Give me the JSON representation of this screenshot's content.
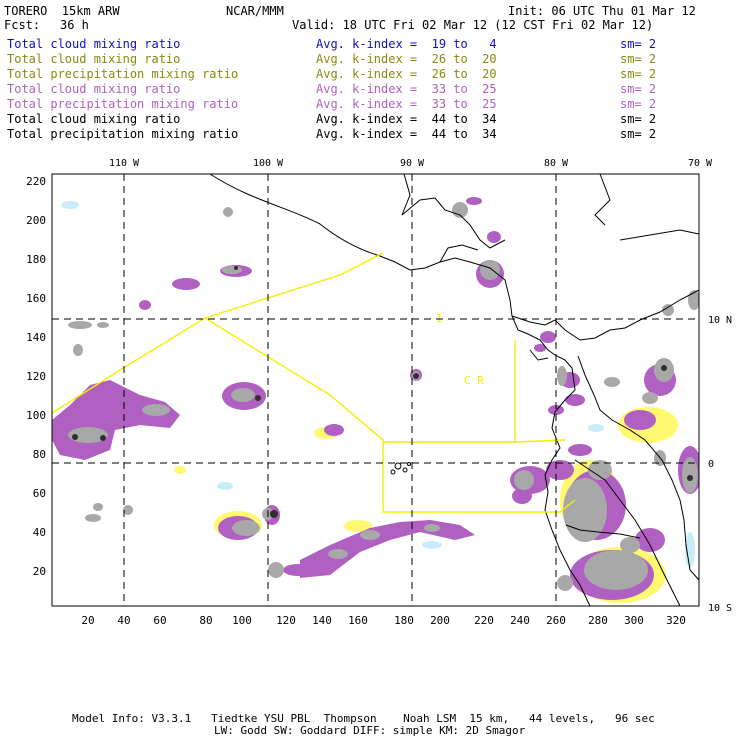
{
  "header": {
    "model": "TORERO  15km ARW",
    "center": "NCAR/MMM",
    "init": "Init: 06 UTC Thu 01 Mar 12",
    "fcst_label": "Fcst:",
    "fcst_value": "36 h",
    "valid": "Valid: 18 UTC Fri 02 Mar 12 (12 CST Fri 02 Mar 12)"
  },
  "legend": [
    {
      "field": "Total cloud mixing ratio",
      "index": "Avg. k-index =  19 to   4",
      "sm": "sm= 2",
      "color": "#1010c0"
    },
    {
      "field": "Total cloud mixing ratio",
      "index": "Avg. k-index =  26 to  20",
      "sm": "sm= 2",
      "color": "#8a8a10"
    },
    {
      "field": "Total precipitation mixing ratio",
      "index": "Avg. k-index =  26 to  20",
      "sm": "sm= 2",
      "color": "#8a8a10"
    },
    {
      "field": "Total cloud mixing ratio",
      "index": "Avg. k-index =  33 to  25",
      "sm": "sm= 2",
      "color": "#b060c0"
    },
    {
      "field": "Total precipitation mixing ratio",
      "index": "Avg. k-index =  33 to  25",
      "sm": "sm= 2",
      "color": "#b060c0"
    },
    {
      "field": "Total cloud mixing ratio",
      "index": "Avg. k-index =  44 to  34",
      "sm": "sm= 2",
      "color": "#000000"
    },
    {
      "field": "Total precipitation mixing ratio",
      "index": "Avg. k-index =  44 to  34",
      "sm": "sm= 2",
      "color": "#000000"
    }
  ],
  "map": {
    "lon_labels": [
      "110 W",
      "100 W",
      "90 W",
      "80 W",
      "70 W"
    ],
    "lat_labels": [
      "10 N",
      "0",
      "10 S"
    ],
    "y_ticks": [
      "220",
      "200",
      "180",
      "160",
      "140",
      "120",
      "100",
      "80",
      "60",
      "40",
      "20"
    ],
    "x_ticks": [
      "20",
      "40",
      "60",
      "80",
      "100",
      "120",
      "140",
      "160",
      "180",
      "200",
      "220",
      "240",
      "260",
      "280",
      "300",
      "320"
    ],
    "region_labels": [
      "I",
      "C R"
    ],
    "colors": {
      "land": "#000000",
      "box": "#f0f000",
      "grey": "#a8a8a8",
      "purple": "#b060c0",
      "yellow": "#fff870",
      "cyan": "#c8ecf8"
    }
  },
  "footer": {
    "line1": "Model Info: V3.3.1   Tiedtke YSU PBL  Thompson    Noah LSM  15 km,   44 levels,   96 sec",
    "line2": "LW: Godd SW: Goddard DIFF: simple KM: 2D Smagor"
  }
}
